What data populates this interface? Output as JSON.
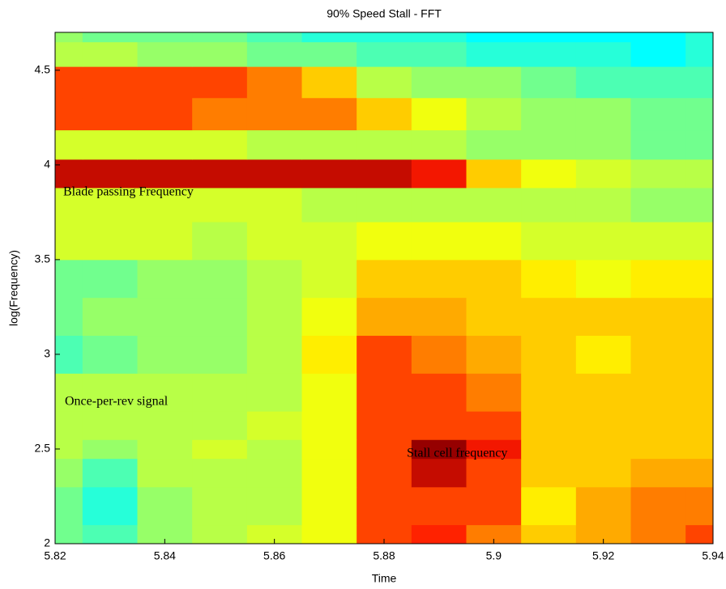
{
  "chart_data": {
    "type": "contour",
    "title": "90% Speed Stall - FFT",
    "x_label": "Time",
    "y_label": "log(Frequency)",
    "annotations": [
      "Blade passing Frequency",
      "Once-per-rev signal",
      "Stall cell frequency"
    ],
    "x": [
      5.82,
      5.83,
      5.84,
      5.85,
      5.86,
      5.87,
      5.88,
      5.89,
      5.9,
      5.91,
      5.92,
      5.93,
      5.94
    ],
    "y": [
      2.0,
      2.2,
      2.4,
      2.5,
      2.6,
      2.8,
      3.0,
      3.2,
      3.4,
      3.6,
      3.8,
      3.96,
      4.1,
      4.27,
      4.44,
      4.6,
      4.7
    ],
    "z": [
      [
        0.4,
        0.35,
        0.45,
        0.5,
        0.55,
        0.6,
        0.85,
        0.88,
        0.8,
        0.7,
        0.75,
        0.8,
        0.85
      ],
      [
        0.4,
        0.3,
        0.45,
        0.5,
        0.5,
        0.6,
        0.85,
        0.85,
        0.85,
        0.65,
        0.75,
        0.8,
        0.8
      ],
      [
        0.45,
        0.35,
        0.5,
        0.5,
        0.5,
        0.6,
        0.85,
        0.95,
        0.85,
        0.7,
        0.7,
        0.75,
        0.75
      ],
      [
        0.5,
        0.45,
        0.5,
        0.55,
        0.5,
        0.6,
        0.85,
        1.0,
        0.9,
        0.7,
        0.7,
        0.7,
        0.7
      ],
      [
        0.5,
        0.5,
        0.5,
        0.5,
        0.55,
        0.6,
        0.85,
        0.85,
        0.85,
        0.7,
        0.7,
        0.7,
        0.7
      ],
      [
        0.5,
        0.5,
        0.5,
        0.5,
        0.5,
        0.6,
        0.85,
        0.85,
        0.8,
        0.7,
        0.7,
        0.7,
        0.7
      ],
      [
        0.35,
        0.4,
        0.45,
        0.45,
        0.5,
        0.65,
        0.85,
        0.8,
        0.75,
        0.7,
        0.65,
        0.7,
        0.7
      ],
      [
        0.4,
        0.45,
        0.45,
        0.45,
        0.5,
        0.6,
        0.75,
        0.75,
        0.7,
        0.7,
        0.7,
        0.7,
        0.7
      ],
      [
        0.4,
        0.4,
        0.45,
        0.45,
        0.5,
        0.55,
        0.7,
        0.7,
        0.7,
        0.65,
        0.6,
        0.65,
        0.65
      ],
      [
        0.55,
        0.55,
        0.55,
        0.5,
        0.55,
        0.55,
        0.6,
        0.6,
        0.6,
        0.55,
        0.55,
        0.55,
        0.55
      ],
      [
        0.55,
        0.55,
        0.55,
        0.55,
        0.55,
        0.5,
        0.5,
        0.5,
        0.5,
        0.5,
        0.5,
        0.45,
        0.45
      ],
      [
        0.95,
        0.95,
        0.95,
        0.95,
        0.95,
        0.95,
        0.95,
        0.9,
        0.7,
        0.6,
        0.55,
        0.5,
        0.5
      ],
      [
        0.55,
        0.55,
        0.55,
        0.55,
        0.5,
        0.5,
        0.5,
        0.5,
        0.45,
        0.45,
        0.45,
        0.4,
        0.4
      ],
      [
        0.85,
        0.85,
        0.85,
        0.8,
        0.8,
        0.8,
        0.7,
        0.6,
        0.5,
        0.45,
        0.45,
        0.4,
        0.4
      ],
      [
        0.85,
        0.85,
        0.85,
        0.85,
        0.8,
        0.7,
        0.5,
        0.45,
        0.45,
        0.4,
        0.35,
        0.35,
        0.35
      ],
      [
        0.5,
        0.5,
        0.45,
        0.45,
        0.4,
        0.4,
        0.35,
        0.35,
        0.3,
        0.3,
        0.3,
        0.25,
        0.3
      ],
      [
        0.45,
        0.4,
        0.4,
        0.4,
        0.35,
        0.3,
        0.3,
        0.3,
        0.25,
        0.25,
        0.25,
        0.25,
        0.3
      ]
    ],
    "xlim": [
      5.82,
      5.94
    ],
    "ylim": [
      2,
      4.7
    ],
    "xticks": [
      5.82,
      5.84,
      5.86,
      5.88,
      5.9,
      5.92,
      5.94
    ],
    "yticks": [
      2,
      2.5,
      3,
      3.5,
      4,
      4.5
    ]
  }
}
